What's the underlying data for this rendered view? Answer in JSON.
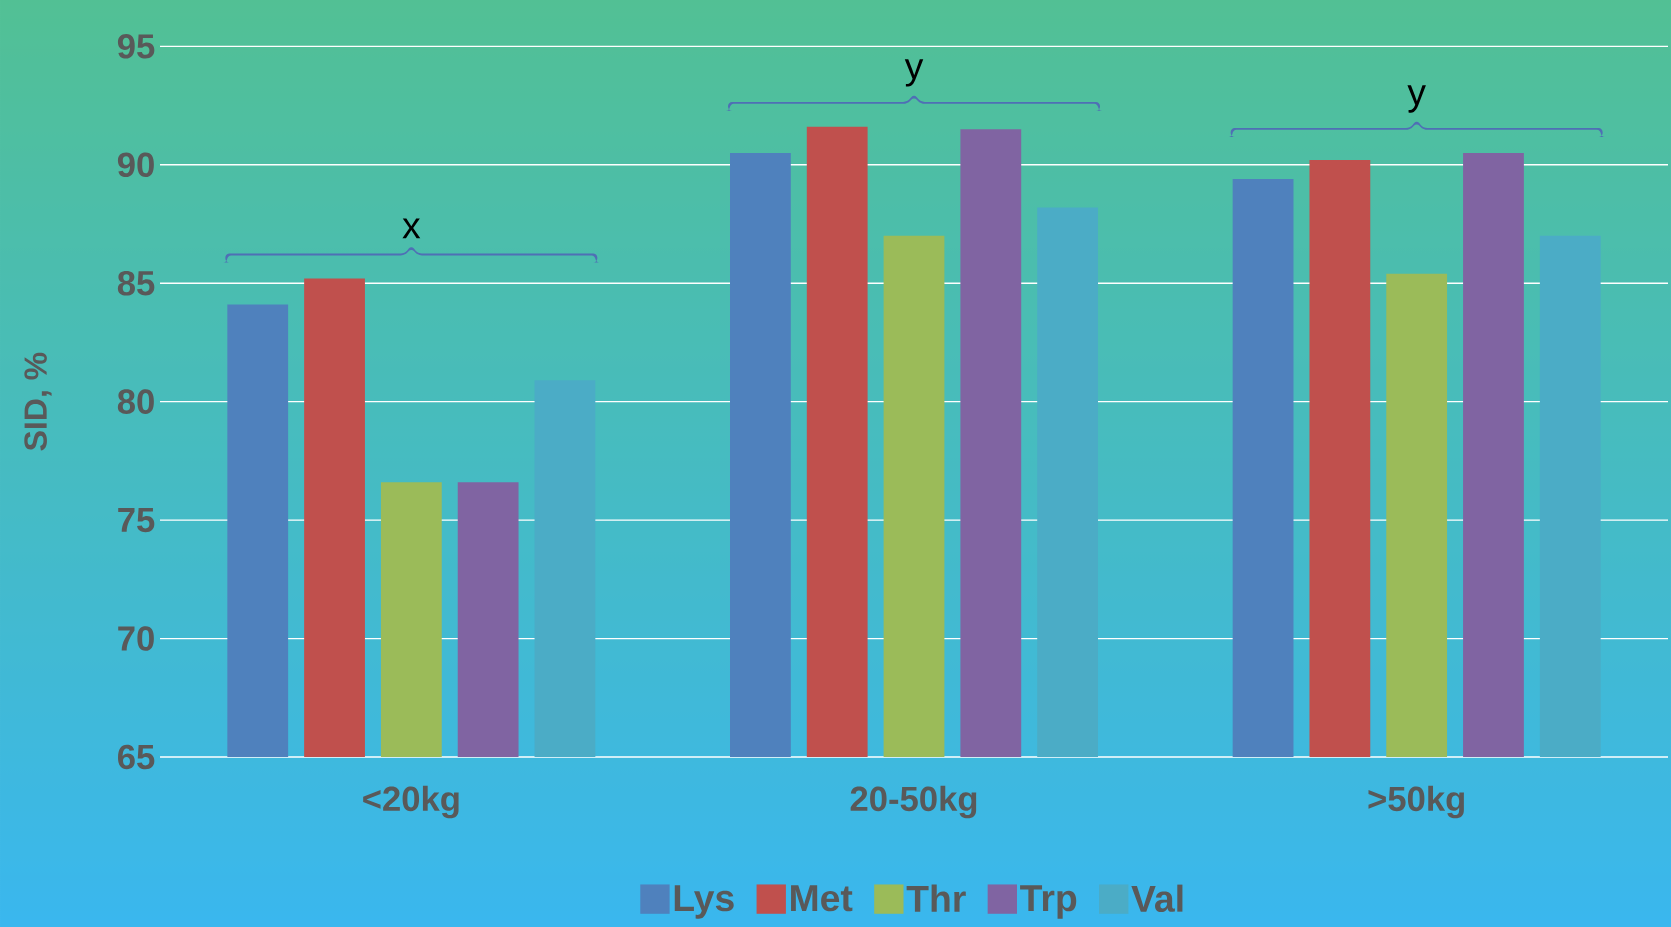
{
  "chart_data": {
    "type": "bar",
    "ylabel": "SID, %",
    "categories": [
      "<20kg",
      "20-50kg",
      ">50kg"
    ],
    "series": [
      {
        "name": "Lys",
        "color": "#4f81bd",
        "values": [
          84.1,
          90.5,
          89.4
        ]
      },
      {
        "name": "Met",
        "color": "#c0504d",
        "values": [
          85.2,
          91.6,
          90.2
        ]
      },
      {
        "name": "Thr",
        "color": "#9bbb59",
        "values": [
          76.6,
          87.0,
          85.4
        ]
      },
      {
        "name": "Trp",
        "color": "#8064a2",
        "values": [
          76.6,
          91.5,
          90.5
        ]
      },
      {
        "name": "Val",
        "color": "#4bacc6",
        "values": [
          80.9,
          88.2,
          87.0
        ]
      }
    ],
    "ylim": [
      65,
      95
    ],
    "yticks": [
      65,
      70,
      75,
      80,
      85,
      90,
      95
    ],
    "grid": "y",
    "legend": "bottom",
    "annotations": [
      "x",
      "y",
      "y"
    ]
  }
}
